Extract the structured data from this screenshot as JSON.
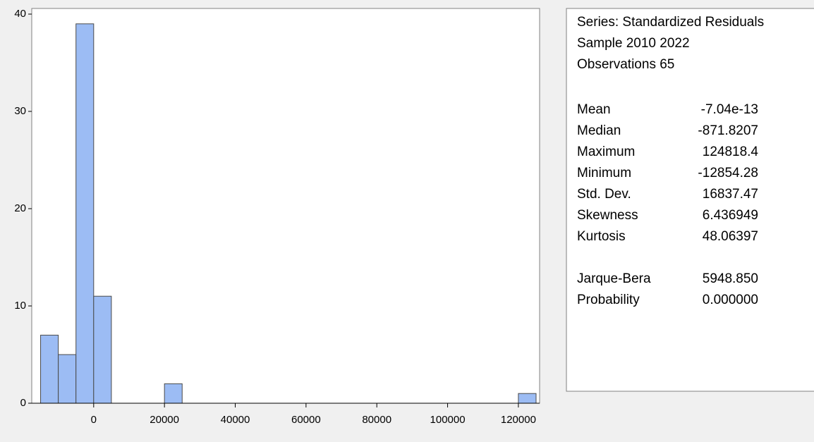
{
  "chart_data": {
    "type": "histogram",
    "bins": [
      -15000,
      -10000,
      -5000,
      0,
      5000,
      10000,
      15000,
      20000,
      25000,
      30000,
      35000,
      40000,
      45000,
      50000,
      55000,
      60000,
      65000,
      70000,
      75000,
      80000,
      85000,
      90000,
      95000,
      100000,
      105000,
      110000,
      115000,
      120000,
      125000
    ],
    "values": [
      7,
      5,
      39,
      11,
      0,
      0,
      0,
      2,
      0,
      0,
      0,
      0,
      0,
      0,
      0,
      0,
      0,
      0,
      0,
      0,
      0,
      0,
      0,
      0,
      0,
      0,
      0,
      1
    ],
    "color": "#9cbcf4",
    "xlim": [
      -17500,
      126000
    ],
    "xticks": [
      0,
      20000,
      40000,
      60000,
      80000,
      100000,
      120000
    ],
    "ylim": [
      0,
      40
    ],
    "yticks": [
      0,
      10,
      20,
      30,
      40
    ]
  },
  "stats_panel": {
    "header": [
      "Series: Standardized Residuals",
      "Sample 2010 2022",
      "Observations 65"
    ],
    "rows": [
      [
        "Mean",
        "-7.04e-13"
      ],
      [
        "Median",
        "-871.8207"
      ],
      [
        "Maximum",
        "124818.4"
      ],
      [
        "Minimum",
        "-12854.28"
      ],
      [
        "Std. Dev.",
        "16837.47"
      ],
      [
        "Skewness",
        "6.436949"
      ],
      [
        "Kurtosis",
        "48.06397"
      ]
    ],
    "tests": [
      [
        "Jarque-Bera",
        "5948.850"
      ],
      [
        "Probability",
        "0.000000"
      ]
    ]
  }
}
